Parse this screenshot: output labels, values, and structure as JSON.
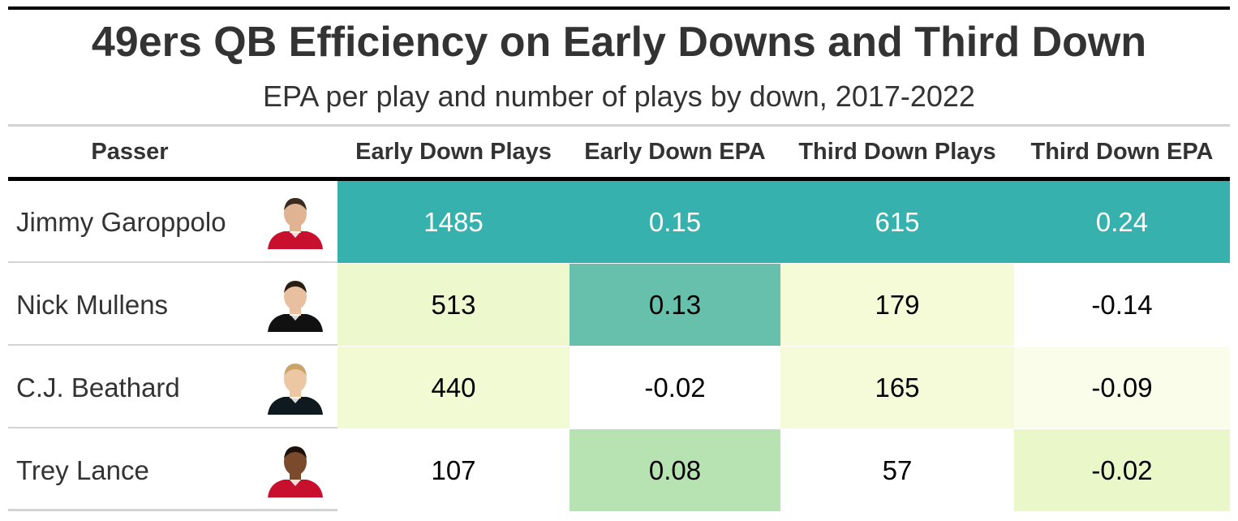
{
  "title": "49ers QB Efficiency on Early Downs and Third Down",
  "subtitle": "EPA per play and number of plays by down, 2017-2022",
  "chart_data": {
    "type": "table",
    "columns": [
      "Passer",
      "Early Down Plays",
      "Early Down EPA",
      "Third Down Plays",
      "Third Down EPA"
    ],
    "rows": [
      {
        "passer": "Jimmy Garoppolo",
        "headshot": "player-headshot",
        "early_down_plays": "1485",
        "early_down_epa": "0.15",
        "third_down_plays": "615",
        "third_down_epa": "0.24",
        "fill": [
          "#37b1ad",
          "#37b1ad",
          "#37b1ad",
          "#37b1ad"
        ],
        "text": [
          "#ffffff",
          "#ffffff",
          "#ffffff",
          "#ffffff"
        ]
      },
      {
        "passer": "Nick Mullens",
        "headshot": "player-headshot",
        "early_down_plays": "513",
        "early_down_epa": "0.13",
        "third_down_plays": "179",
        "third_down_epa": "-0.14",
        "fill": [
          "#edf8cd",
          "#66c0ac",
          "#f4fbd6",
          "#ffffff"
        ],
        "text": [
          "#000000",
          "#000000",
          "#000000",
          "#000000"
        ]
      },
      {
        "passer": "C.J. Beathard",
        "headshot": "player-headshot",
        "early_down_plays": "440",
        "early_down_epa": "-0.02",
        "third_down_plays": "165",
        "third_down_epa": "-0.09",
        "fill": [
          "#f1fad3",
          "#ffffff",
          "#f5fbd9",
          "#f9fde9"
        ],
        "text": [
          "#000000",
          "#000000",
          "#000000",
          "#000000"
        ]
      },
      {
        "passer": "Trey Lance",
        "headshot": "player-headshot",
        "early_down_plays": "107",
        "early_down_epa": "0.08",
        "third_down_plays": "57",
        "third_down_epa": "-0.02",
        "fill": [
          "#ffffff",
          "#b6e3b1",
          "#ffffff",
          "#e9f7c9"
        ],
        "text": [
          "#000000",
          "#000000",
          "#000000",
          "#000000"
        ]
      }
    ]
  }
}
